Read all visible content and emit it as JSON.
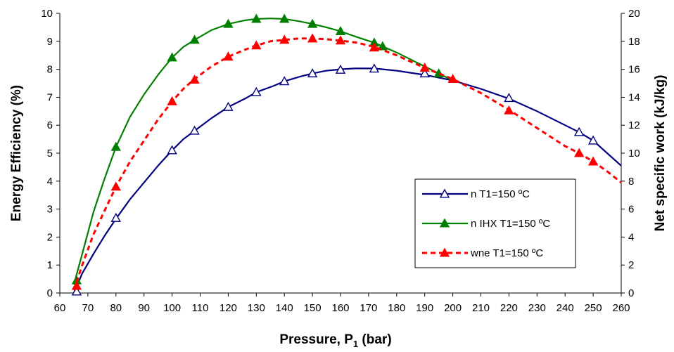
{
  "chart_data": {
    "type": "line",
    "title": "",
    "xlabel": "Pressure, P",
    "xlabel_sub": "1",
    "xlabel_unit": " (bar)",
    "ylabel_left": "Energy Efficiency (%)",
    "ylabel_right": "Net specific work (kJ/kg)",
    "xlim": [
      60,
      260
    ],
    "xticks": [
      60,
      70,
      80,
      90,
      100,
      110,
      120,
      130,
      140,
      150,
      160,
      170,
      180,
      190,
      200,
      210,
      220,
      230,
      240,
      250,
      260
    ],
    "ylim_left": [
      0,
      10
    ],
    "yticks_left": [
      0,
      1,
      2,
      3,
      4,
      5,
      6,
      7,
      8,
      9,
      10
    ],
    "ylim_right": [
      0,
      20
    ],
    "yticks_right": [
      0,
      2,
      4,
      6,
      8,
      10,
      12,
      14,
      16,
      18,
      20
    ],
    "grid": false,
    "legend_position": "lower-right",
    "series": [
      {
        "name": "n T1=150 ºC",
        "axis": "left",
        "color": "#000080",
        "line_style": "solid",
        "marker": "open-triangle",
        "curve": [
          [
            65,
            0.0
          ],
          [
            68,
            0.7
          ],
          [
            72,
            1.4
          ],
          [
            76,
            2.05
          ],
          [
            80,
            2.65
          ],
          [
            85,
            3.35
          ],
          [
            90,
            3.95
          ],
          [
            95,
            4.55
          ],
          [
            100,
            5.1
          ],
          [
            104,
            5.5
          ],
          [
            108,
            5.8
          ],
          [
            114,
            6.25
          ],
          [
            120,
            6.65
          ],
          [
            126,
            6.95
          ],
          [
            130,
            7.18
          ],
          [
            136,
            7.4
          ],
          [
            140,
            7.57
          ],
          [
            146,
            7.75
          ],
          [
            150,
            7.85
          ],
          [
            155,
            7.95
          ],
          [
            160,
            8.0
          ],
          [
            165,
            8.03
          ],
          [
            172,
            8.03
          ],
          [
            180,
            7.95
          ],
          [
            190,
            7.8
          ],
          [
            200,
            7.6
          ],
          [
            210,
            7.3
          ],
          [
            220,
            6.95
          ],
          [
            230,
            6.5
          ],
          [
            240,
            6.0
          ],
          [
            245,
            5.75
          ],
          [
            250,
            5.45
          ],
          [
            255,
            5.0
          ],
          [
            260,
            4.55
          ]
        ],
        "markers": [
          [
            66,
            0.05
          ],
          [
            80,
            2.68
          ],
          [
            100,
            5.1
          ],
          [
            108,
            5.8
          ],
          [
            120,
            6.65
          ],
          [
            130,
            7.18
          ],
          [
            140,
            7.57
          ],
          [
            150,
            7.85
          ],
          [
            160,
            7.98
          ],
          [
            172,
            8.02
          ],
          [
            190,
            7.85
          ],
          [
            220,
            6.97
          ],
          [
            245,
            5.75
          ],
          [
            250,
            5.45
          ]
        ]
      },
      {
        "name": "n IHX T1=150 ºC",
        "axis": "left",
        "color": "#008000",
        "line_style": "solid",
        "marker": "filled-triangle",
        "curve": [
          [
            65,
            0.3
          ],
          [
            68,
            1.4
          ],
          [
            72,
            2.9
          ],
          [
            76,
            4.1
          ],
          [
            80,
            5.22
          ],
          [
            85,
            6.3
          ],
          [
            90,
            7.1
          ],
          [
            95,
            7.8
          ],
          [
            100,
            8.42
          ],
          [
            104,
            8.8
          ],
          [
            108,
            9.05
          ],
          [
            114,
            9.4
          ],
          [
            120,
            9.62
          ],
          [
            126,
            9.75
          ],
          [
            130,
            9.8
          ],
          [
            135,
            9.82
          ],
          [
            140,
            9.8
          ],
          [
            145,
            9.72
          ],
          [
            150,
            9.62
          ],
          [
            155,
            9.5
          ],
          [
            160,
            9.36
          ],
          [
            165,
            9.18
          ],
          [
            172,
            8.95
          ],
          [
            175,
            8.82
          ],
          [
            180,
            8.6
          ],
          [
            185,
            8.35
          ],
          [
            190,
            8.1
          ],
          [
            195,
            7.85
          ],
          [
            200,
            7.6
          ]
        ],
        "markers": [
          [
            66,
            0.45
          ],
          [
            80,
            5.22
          ],
          [
            100,
            8.42
          ],
          [
            108,
            9.05
          ],
          [
            120,
            9.62
          ],
          [
            130,
            9.8
          ],
          [
            140,
            9.8
          ],
          [
            150,
            9.62
          ],
          [
            160,
            9.36
          ],
          [
            172,
            8.95
          ],
          [
            175,
            8.82
          ],
          [
            195,
            7.85
          ]
        ]
      },
      {
        "name": "wne T1=150 ºC",
        "axis": "right",
        "color": "#ff0000",
        "line_style": "dashed",
        "marker": "filled-triangle",
        "curve": [
          [
            65,
            0.2
          ],
          [
            68,
            2.0
          ],
          [
            72,
            4.2
          ],
          [
            76,
            5.9
          ],
          [
            80,
            7.6
          ],
          [
            85,
            9.4
          ],
          [
            90,
            10.9
          ],
          [
            95,
            12.4
          ],
          [
            100,
            13.7
          ],
          [
            104,
            14.6
          ],
          [
            108,
            15.3
          ],
          [
            114,
            16.2
          ],
          [
            120,
            16.9
          ],
          [
            126,
            17.4
          ],
          [
            130,
            17.7
          ],
          [
            135,
            18.0
          ],
          [
            140,
            18.1
          ],
          [
            145,
            18.2
          ],
          [
            150,
            18.2
          ],
          [
            155,
            18.15
          ],
          [
            160,
            18.05
          ],
          [
            166,
            17.9
          ],
          [
            172,
            17.6
          ],
          [
            180,
            17.0
          ],
          [
            190,
            16.1
          ],
          [
            200,
            15.3
          ],
          [
            210,
            14.3
          ],
          [
            220,
            13.1
          ],
          [
            230,
            11.8
          ],
          [
            240,
            10.5
          ],
          [
            245,
            10.0
          ],
          [
            250,
            9.4
          ],
          [
            255,
            8.7
          ],
          [
            260,
            7.9
          ]
        ],
        "markers": [
          [
            66,
            0.5
          ],
          [
            80,
            7.6
          ],
          [
            100,
            13.7
          ],
          [
            108,
            15.25
          ],
          [
            120,
            16.9
          ],
          [
            130,
            17.7
          ],
          [
            140,
            18.1
          ],
          [
            150,
            18.2
          ],
          [
            160,
            18.05
          ],
          [
            172,
            17.55
          ],
          [
            190,
            16.1
          ],
          [
            200,
            15.3
          ],
          [
            220,
            13.05
          ],
          [
            245,
            10.0
          ],
          [
            250,
            9.4
          ]
        ]
      }
    ]
  }
}
